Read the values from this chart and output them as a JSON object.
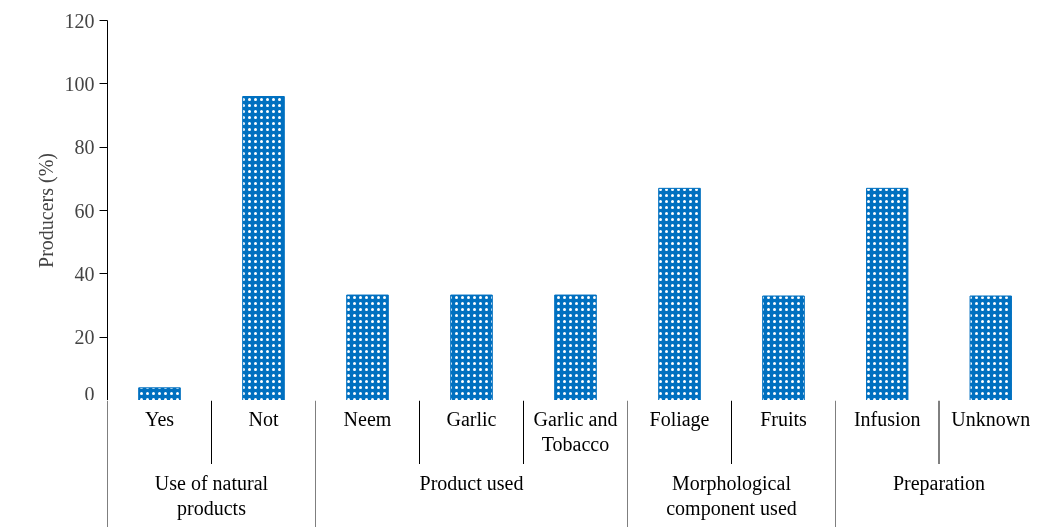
{
  "chart_data": [
    {
      "type": "bar",
      "title": "Use of natural products",
      "ylabel": "Producers (%)",
      "categories": [
        "Yes",
        "Not"
      ],
      "values": [
        4,
        96
      ],
      "color": "#0070c0",
      "ylim": [
        0,
        120
      ],
      "yticks": [
        0,
        20,
        40,
        60,
        80,
        100,
        120
      ]
    },
    {
      "type": "bar",
      "title": "Product used",
      "categories": [
        "Neem",
        "Garlic",
        "Garlic and Tobacco"
      ],
      "values": [
        33.3,
        33.3,
        33.3
      ],
      "color": "#0070c0",
      "ylim": [
        0,
        120
      ],
      "tick_labels": "x"
    },
    {
      "type": "bar",
      "title": "Morphological component used",
      "categories": [
        "Foliage",
        "Fruits"
      ],
      "values": [
        67,
        33
      ],
      "color": "#0070c0",
      "ylim": [
        0,
        120
      ],
      "tick_labels": "x"
    },
    {
      "type": "bar",
      "title": "Preparation",
      "categories": [
        "Infusion",
        "Unknown"
      ],
      "values": [
        67,
        33
      ],
      "color": "#0070c0",
      "ylim": [
        0,
        120
      ],
      "tick_labels": "x"
    }
  ]
}
